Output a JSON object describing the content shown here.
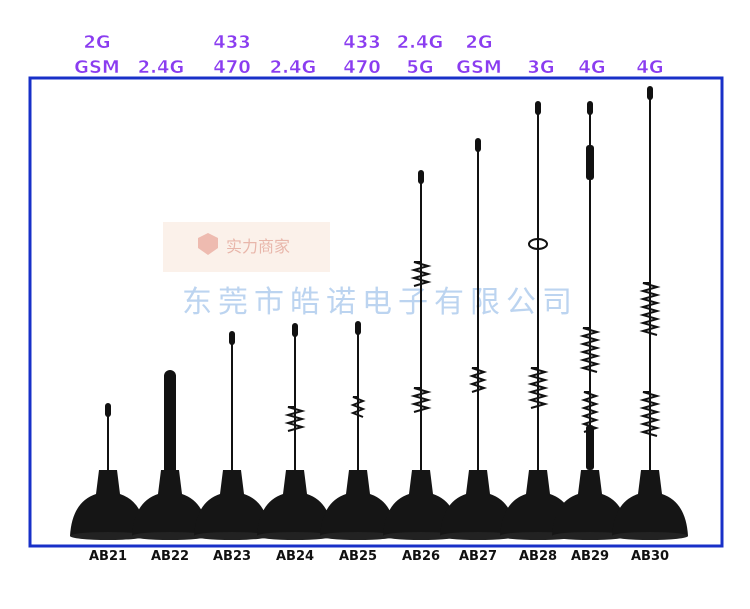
{
  "antennas": [
    {
      "bands": [
        "2G",
        "GSM"
      ],
      "model": "AB21"
    },
    {
      "bands": [
        "2.4G"
      ],
      "model": "AB22"
    },
    {
      "bands": [
        "433",
        "470"
      ],
      "model": "AB23"
    },
    {
      "bands": [
        "2.4G"
      ],
      "model": "AB24"
    },
    {
      "bands": [
        "433",
        "470"
      ],
      "model": "AB25"
    },
    {
      "bands": [
        "2.4G",
        "5G"
      ],
      "model": "AB26"
    },
    {
      "bands": [
        "2G",
        "GSM"
      ],
      "model": "AB27"
    },
    {
      "bands": [
        "3G"
      ],
      "model": "AB28"
    },
    {
      "bands": [
        "4G"
      ],
      "model": "AB29"
    },
    {
      "bands": [
        "4G"
      ],
      "model": "AB30"
    }
  ],
  "watermarks": {
    "badge": "实力商家",
    "company": "东莞市皓诺电子有限公司"
  }
}
